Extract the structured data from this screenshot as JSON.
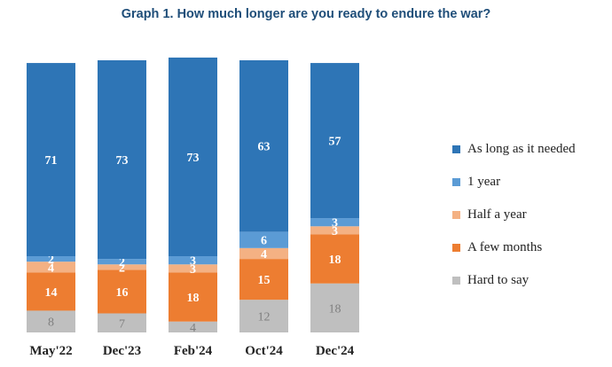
{
  "chart_data": {
    "type": "bar",
    "stacked": true,
    "title": "Graph 1. How much longer are you ready to endure the war?",
    "categories": [
      "May'22",
      "Dec'23",
      "Feb'24",
      "Oct'24",
      "Dec'24"
    ],
    "series": [
      {
        "name": "Hard to say",
        "color": "#bfbfbf",
        "label_color": "#7f7f7f",
        "values": [
          8,
          7,
          4,
          12,
          18
        ]
      },
      {
        "name": "A few months",
        "color": "#ed7d31",
        "label_color": "#ffffff",
        "values": [
          14,
          16,
          18,
          15,
          18
        ]
      },
      {
        "name": "Half a year",
        "color": "#f4b183",
        "label_color": "#ffffff",
        "values": [
          4,
          2,
          3,
          4,
          3
        ]
      },
      {
        "name": "1 year",
        "color": "#5b9bd5",
        "label_color": "#ffffff",
        "values": [
          2,
          2,
          3,
          6,
          3
        ]
      },
      {
        "name": "As long as it needed",
        "color": "#2e75b6",
        "label_color": "#ffffff",
        "values": [
          71,
          73,
          73,
          63,
          57
        ]
      }
    ],
    "legend_order": [
      "As long as it needed",
      "1 year",
      "Half a year",
      "A few months",
      "Hard to say"
    ],
    "ylim": [
      0,
      100
    ],
    "xlabel": "",
    "ylabel": "",
    "grid": false,
    "legend_position": "right"
  }
}
